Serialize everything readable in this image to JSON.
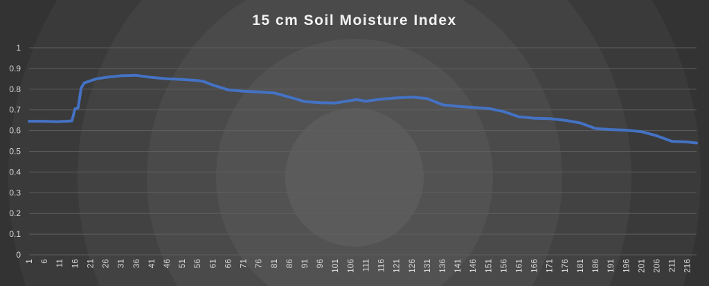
{
  "chart_data": {
    "type": "line",
    "title": "15 cm Soil Moisture Index",
    "xlabel": "",
    "ylabel": "",
    "ylim": [
      0,
      1
    ],
    "y_ticks": [
      "0",
      "0.1",
      "0.2",
      "0.3",
      "0.4",
      "0.5",
      "0.6",
      "0.7",
      "0.8",
      "0.9",
      "1"
    ],
    "x_ticks": [
      "1",
      "6",
      "11",
      "16",
      "21",
      "26",
      "31",
      "36",
      "41",
      "46",
      "51",
      "56",
      "61",
      "66",
      "71",
      "76",
      "81",
      "86",
      "91",
      "96",
      "101",
      "106",
      "111",
      "116",
      "121",
      "126",
      "131",
      "136",
      "141",
      "146",
      "151",
      "156",
      "161",
      "166",
      "171",
      "176",
      "181",
      "186",
      "191",
      "196",
      "201",
      "206",
      "211",
      "216"
    ],
    "xlim": [
      1,
      219
    ],
    "grid": true,
    "line_color": "#4472c4",
    "series": [
      {
        "points": [
          [
            1,
            0.645
          ],
          [
            6,
            0.645
          ],
          [
            10,
            0.643
          ],
          [
            13,
            0.645
          ],
          [
            15,
            0.647
          ],
          [
            16,
            0.705
          ],
          [
            17,
            0.71
          ],
          [
            18,
            0.805
          ],
          [
            19,
            0.83
          ],
          [
            21,
            0.84
          ],
          [
            23,
            0.85
          ],
          [
            26,
            0.857
          ],
          [
            31,
            0.865
          ],
          [
            36,
            0.867
          ],
          [
            41,
            0.857
          ],
          [
            46,
            0.85
          ],
          [
            51,
            0.847
          ],
          [
            56,
            0.842
          ],
          [
            58,
            0.837
          ],
          [
            61,
            0.82
          ],
          [
            66,
            0.797
          ],
          [
            71,
            0.79
          ],
          [
            76,
            0.787
          ],
          [
            81,
            0.782
          ],
          [
            86,
            0.762
          ],
          [
            91,
            0.74
          ],
          [
            96,
            0.735
          ],
          [
            101,
            0.733
          ],
          [
            106,
            0.745
          ],
          [
            108,
            0.75
          ],
          [
            111,
            0.742
          ],
          [
            116,
            0.752
          ],
          [
            121,
            0.758
          ],
          [
            126,
            0.762
          ],
          [
            131,
            0.755
          ],
          [
            136,
            0.725
          ],
          [
            141,
            0.717
          ],
          [
            146,
            0.712
          ],
          [
            151,
            0.707
          ],
          [
            156,
            0.692
          ],
          [
            161,
            0.667
          ],
          [
            166,
            0.66
          ],
          [
            171,
            0.658
          ],
          [
            176,
            0.65
          ],
          [
            181,
            0.637
          ],
          [
            186,
            0.61
          ],
          [
            191,
            0.605
          ],
          [
            196,
            0.602
          ],
          [
            201,
            0.595
          ],
          [
            206,
            0.575
          ],
          [
            211,
            0.548
          ],
          [
            216,
            0.545
          ],
          [
            219,
            0.54
          ]
        ]
      }
    ]
  }
}
